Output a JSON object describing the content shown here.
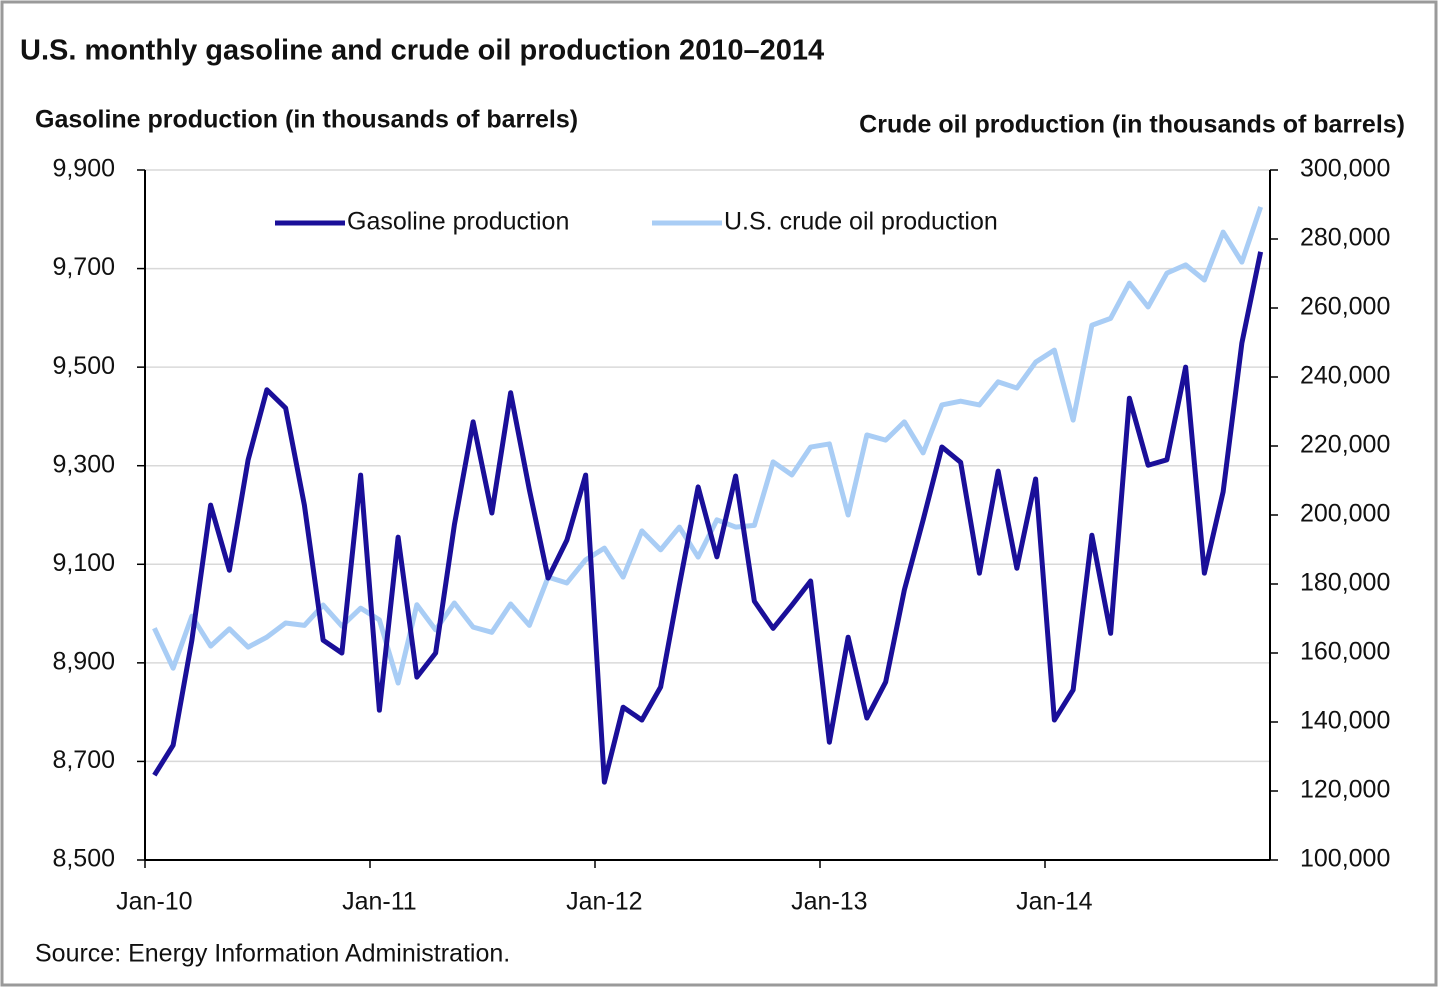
{
  "chart_data": {
    "type": "line",
    "title": "U.S. monthly gasoline and crude oil production 2010–2014",
    "y_axis_label": "Gasoline production (in thousands of barrels)",
    "y2_axis_label": "Crude oil production (in thousands of barrels)",
    "source": "Source: Energy Information Administration.",
    "categories": [
      "Jan-10",
      null,
      null,
      null,
      null,
      null,
      null,
      null,
      null,
      null,
      null,
      null,
      "Jan-11",
      null,
      null,
      null,
      null,
      null,
      null,
      null,
      null,
      null,
      null,
      null,
      "Jan-12",
      null,
      null,
      null,
      null,
      null,
      null,
      null,
      null,
      null,
      null,
      null,
      "Jan-13",
      null,
      null,
      null,
      null,
      null,
      null,
      null,
      null,
      null,
      null,
      null,
      "Jan-14",
      null,
      null,
      null,
      null,
      null,
      null,
      null,
      null,
      null,
      null,
      null
    ],
    "series": [
      {
        "name": "Gasoline production",
        "color": "#1a0f99",
        "values": [
          8672,
          8733,
          8946,
          9220,
          9088,
          9312,
          9454,
          9417,
          9220,
          8946,
          8920,
          9281,
          8804,
          9155,
          8871,
          8920,
          9180,
          9389,
          9204,
          9448,
          9251,
          9072,
          9149,
          9281,
          8658,
          8810,
          8784,
          8851,
          9058,
          9257,
          9115,
          9279,
          9025,
          8970,
          9017,
          9066,
          8739,
          8952,
          8788,
          8861,
          9048,
          9190,
          9338,
          9307,
          9082,
          9289,
          9092,
          9273,
          8784,
          8845,
          9159,
          8960,
          9437,
          9301,
          9312,
          9500,
          9082,
          9247,
          9549,
          9734
        ]
      },
      {
        "name": "U.S. crude oil production",
        "color": "#a9cdf5",
        "axis": "y2",
        "values": [
          167200,
          155600,
          170700,
          162000,
          167000,
          161700,
          164600,
          168700,
          168000,
          173900,
          167800,
          173000,
          169600,
          151300,
          174000,
          166700,
          174500,
          167500,
          166000,
          174200,
          168000,
          182000,
          180300,
          187000,
          190400,
          182000,
          195400,
          189900,
          196500,
          187800,
          198600,
          196500,
          197000,
          215400,
          211600,
          219700,
          220600,
          200000,
          223200,
          221700,
          227000,
          218000,
          231900,
          233000,
          231900,
          238600,
          236800,
          244300,
          247800,
          227500,
          255000,
          257000,
          267200,
          260300,
          270100,
          272500,
          268100,
          282000,
          273300,
          289300
        ]
      }
    ],
    "ylim": [
      8500,
      9900
    ],
    "yticks": [
      {
        "value": 8500,
        "label": "8,500"
      },
      {
        "value": 8700,
        "label": "8,700"
      },
      {
        "value": 8900,
        "label": "8,900"
      },
      {
        "value": 9100,
        "label": "9,100"
      },
      {
        "value": 9300,
        "label": "9,300"
      },
      {
        "value": 9500,
        "label": "9,500"
      },
      {
        "value": 9700,
        "label": "9,700"
      },
      {
        "value": 9900,
        "label": "9,900"
      }
    ],
    "y2lim": [
      100000,
      300000
    ],
    "y2ticks": [
      {
        "value": 100000,
        "label": "100,000"
      },
      {
        "value": 120000,
        "label": "120,000"
      },
      {
        "value": 140000,
        "label": "140,000"
      },
      {
        "value": 160000,
        "label": "160,000"
      },
      {
        "value": 180000,
        "label": "180,000"
      },
      {
        "value": 200000,
        "label": "200,000"
      },
      {
        "value": 220000,
        "label": "220,000"
      },
      {
        "value": 240000,
        "label": "240,000"
      },
      {
        "value": 260000,
        "label": "260,000"
      },
      {
        "value": 280000,
        "label": "280,000"
      },
      {
        "value": 300000,
        "label": "300,000"
      }
    ],
    "grid": true,
    "legend": "top"
  }
}
